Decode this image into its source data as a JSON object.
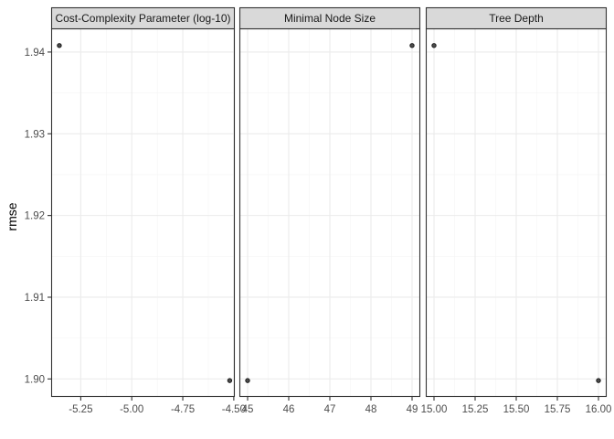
{
  "chart_data": {
    "type": "scatter",
    "ylabel": "rmse",
    "xlabel": "",
    "ylim": [
      1.8978,
      1.9429
    ],
    "y_ticks": [
      1.9,
      1.91,
      1.92,
      1.93,
      1.94
    ],
    "y_tick_labels": [
      "1.90",
      "1.91",
      "1.92",
      "1.93",
      "1.94"
    ],
    "grid": true,
    "colors": {
      "panel_border": "#333333",
      "grid_major": "#ebebeb",
      "grid_minor": "#f5f5f5",
      "strip_fill": "#d9d9d9",
      "point_fill": "#4d4d4d",
      "point_stroke": "#1a1a1a"
    },
    "facets": [
      {
        "name": "Cost-Complexity Parameter (log-10)",
        "xlim": [
          -5.395,
          -4.495
        ],
        "x_ticks": [
          -5.25,
          -5.0,
          -4.75,
          -4.5
        ],
        "x_tick_labels": [
          "-5.25",
          "-5.00",
          "-4.75",
          "-4.50"
        ],
        "points": [
          {
            "x": -5.355,
            "y": 1.9408
          },
          {
            "x": -4.52,
            "y": 1.8998
          }
        ]
      },
      {
        "name": "Minimal Node Size",
        "xlim": [
          44.8,
          49.2
        ],
        "x_ticks": [
          45,
          46,
          47,
          48,
          49
        ],
        "x_tick_labels": [
          "45",
          "46",
          "47",
          "48",
          "49"
        ],
        "points": [
          {
            "x": 45,
            "y": 1.8998
          },
          {
            "x": 49,
            "y": 1.9408
          }
        ]
      },
      {
        "name": "Tree Depth",
        "xlim": [
          14.95,
          16.05
        ],
        "x_ticks": [
          15.0,
          15.25,
          15.5,
          15.75,
          16.0
        ],
        "x_tick_labels": [
          "15.00",
          "15.25",
          "15.50",
          "15.75",
          "16.00"
        ],
        "points": [
          {
            "x": 15,
            "y": 1.9408
          },
          {
            "x": 16,
            "y": 1.8998
          }
        ]
      }
    ]
  }
}
